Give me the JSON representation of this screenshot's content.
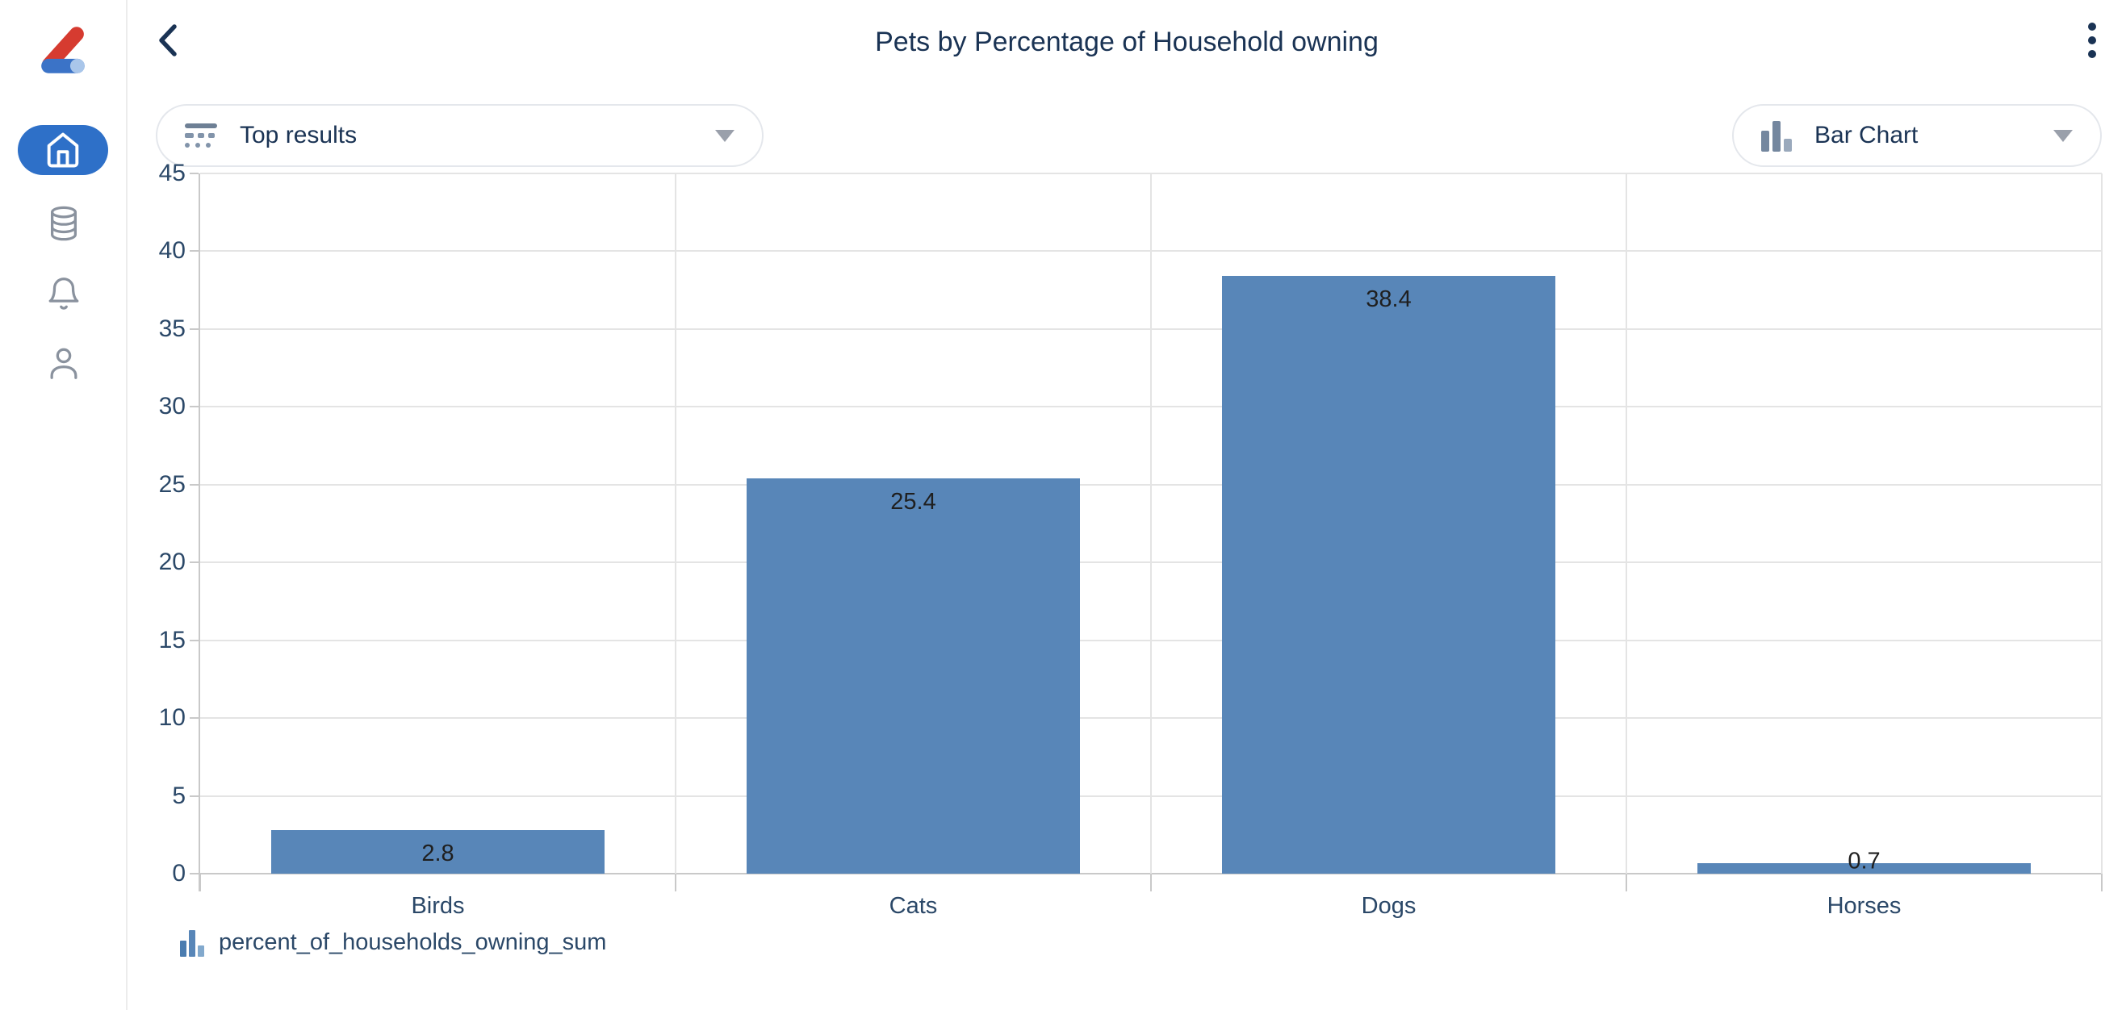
{
  "header": {
    "title": "Pets by Percentage of Household owning"
  },
  "controls": {
    "top_results": {
      "label": "Top results",
      "icon": "top-results-icon"
    },
    "chart_type": {
      "label": "Bar Chart",
      "icon": "bar-chart-icon"
    }
  },
  "sidebar": {
    "logo": "zing-data-logo",
    "items": [
      {
        "id": "home",
        "icon": "home-icon",
        "active": true
      },
      {
        "id": "data",
        "icon": "database-icon",
        "active": false
      },
      {
        "id": "notifications",
        "icon": "bell-icon",
        "active": false
      },
      {
        "id": "profile",
        "icon": "user-icon",
        "active": false
      }
    ]
  },
  "legend": {
    "label": "percent_of_households_owning_sum"
  },
  "chart_data": {
    "type": "bar",
    "title": "Pets by Percentage of Household owning",
    "categories": [
      "Birds",
      "Cats",
      "Dogs",
      "Horses"
    ],
    "values": [
      2.8,
      25.4,
      38.4,
      0.7
    ],
    "series_name": "percent_of_households_owning_sum",
    "xlabel": "",
    "ylabel": "",
    "ylim": [
      0,
      45
    ],
    "ytick_step": 5,
    "yticks": [
      0,
      5,
      10,
      15,
      20,
      25,
      30,
      35,
      40,
      45
    ],
    "grid": true,
    "bar_width_fraction": 0.7,
    "bar_color": "#5886b8",
    "value_labels": [
      "2.8",
      "25.4",
      "38.4",
      "0.7"
    ],
    "legend_position": "bottom-left"
  },
  "theme": {
    "navy": "#1a3354",
    "axis_label": "#2b4868",
    "grid_line": "#e4e4e4",
    "axis_line": "#c9c9c9",
    "bar_blue": "#5886b8",
    "icon_gray": "#8a929e",
    "active_blue": "#2e70c8",
    "pill_border": "#e4e7ec",
    "caret_gray": "#9aa0ab",
    "value_label": "#1f1f1f",
    "sidebar_border": "#ececec"
  }
}
